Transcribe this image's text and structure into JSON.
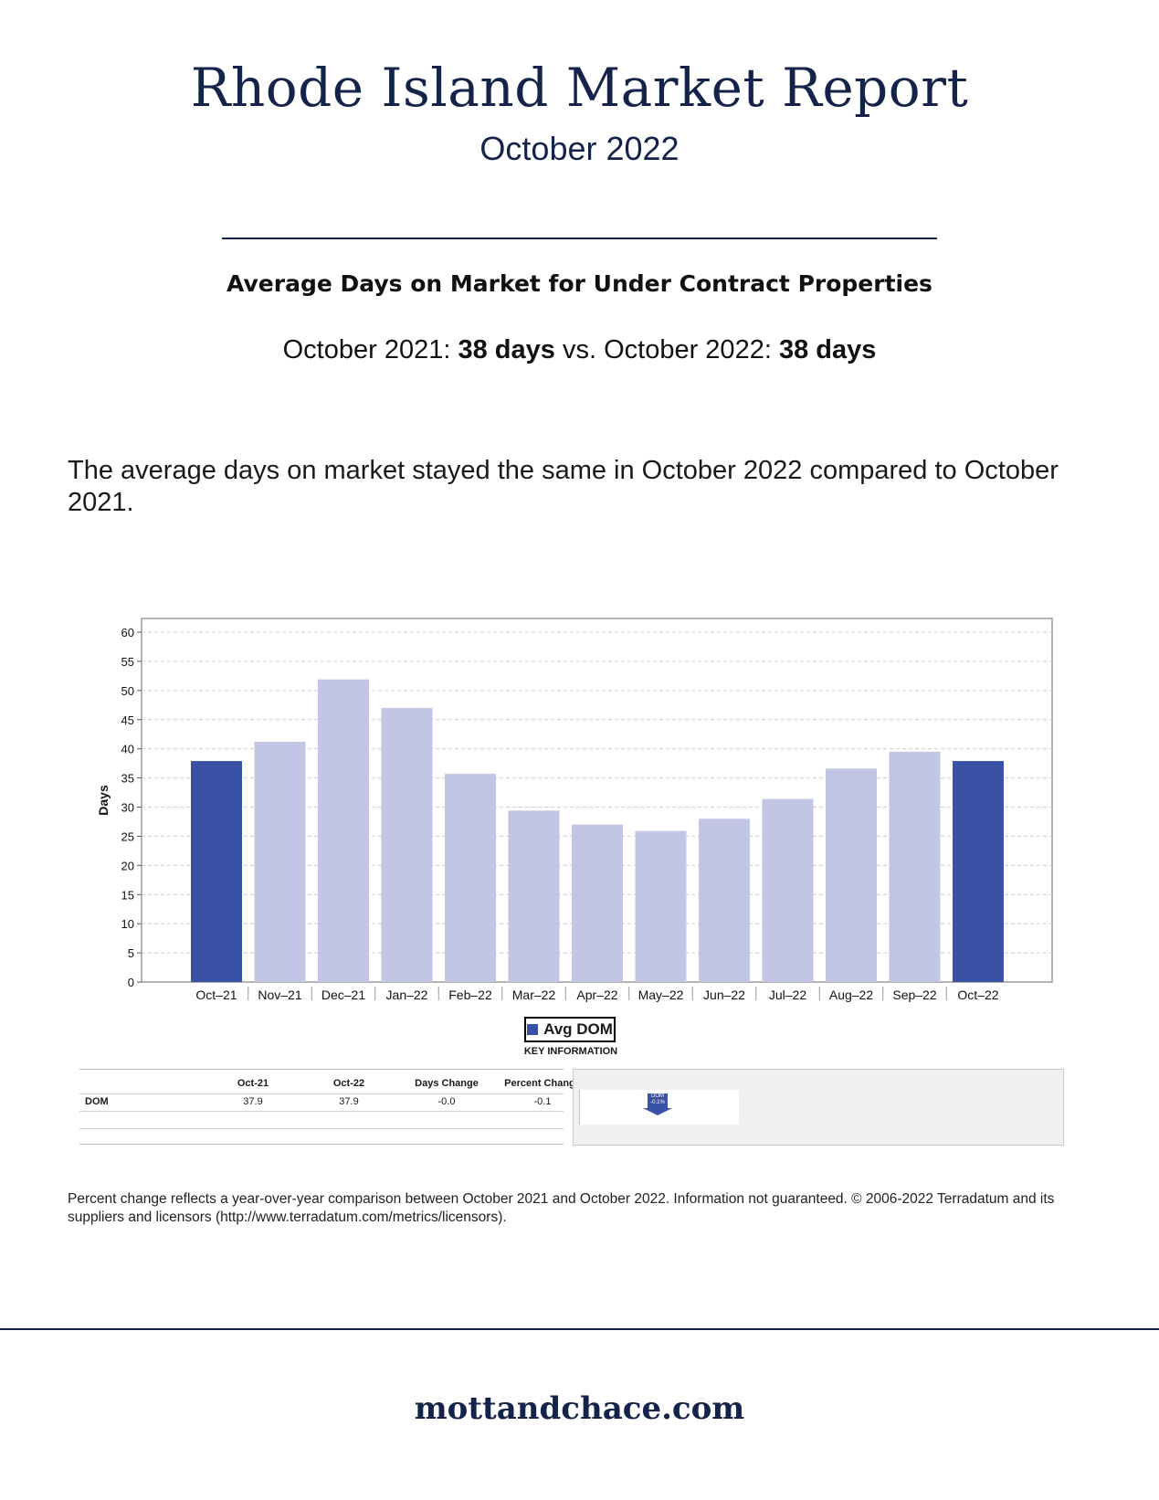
{
  "header": {
    "title": "Rhode Island Market Report",
    "subtitle": "October 2022"
  },
  "section": {
    "heading": "Average Days on Market for Under Contract Properties",
    "compare_label_1": "October 2021:",
    "compare_value_1": "38 days",
    "compare_vs": "vs.",
    "compare_label_2": "October 2022:",
    "compare_value_2": "38 days",
    "summary": "The average days on market stayed the same in October 2022 compared to October 2021."
  },
  "chart_data": {
    "type": "bar",
    "title": "",
    "xlabel": "",
    "ylabel": "Days",
    "ylim": [
      0,
      60
    ],
    "yticks": [
      0,
      5,
      10,
      15,
      20,
      25,
      30,
      35,
      40,
      45,
      50,
      55,
      60
    ],
    "grid": true,
    "categories": [
      "Oct–21",
      "Nov–21",
      "Dec–21",
      "Jan–22",
      "Feb–22",
      "Mar–22",
      "Apr–22",
      "May–22",
      "Jun–22",
      "Jul–22",
      "Aug–22",
      "Sep–22",
      "Oct–22"
    ],
    "series": [
      {
        "name": "Avg DOM",
        "values": [
          37.9,
          41.2,
          51.9,
          47.0,
          35.7,
          29.4,
          27.0,
          25.9,
          28.0,
          31.4,
          36.6,
          39.5,
          37.9
        ]
      }
    ],
    "highlighted": [
      "Oct–21",
      "Oct–22"
    ],
    "colors": {
      "highlight": "#3a52a6",
      "normal": "#c2c6e4"
    },
    "legend": {
      "label": "Avg DOM",
      "placement": "bottom-center"
    }
  },
  "key_information": {
    "title": "KEY INFORMATION",
    "columns": [
      "Oct-21",
      "Oct-22",
      "Days Change",
      "Percent Change"
    ],
    "rows": [
      {
        "label": "DOM",
        "values": [
          "37.9",
          "37.9",
          "-0.0",
          "-0.1"
        ]
      }
    ],
    "indicator": {
      "label": "DOM",
      "value": "-0.1%",
      "direction": "down",
      "color": "#3a52a6"
    }
  },
  "footnote": "Percent change reflects a year-over-year comparison between October 2021 and October 2022. Information not guaranteed. © 2006-2022 Terradatum and its suppliers and licensors (http://www.terradatum.com/metrics/licensors).",
  "footer": {
    "site": "mottandchace.com"
  }
}
